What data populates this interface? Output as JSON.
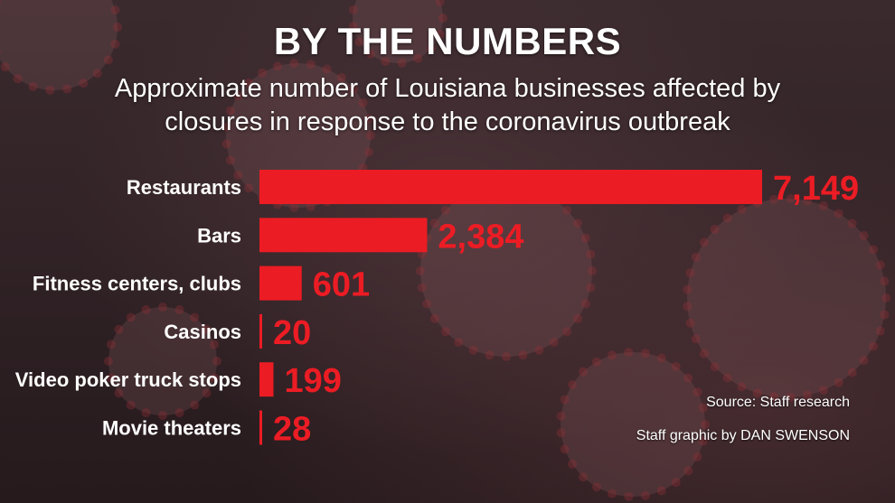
{
  "header": {
    "title": "BY THE NUMBERS",
    "subtitle_line1": "Approximate number of Louisiana businesses affected by",
    "subtitle_line2": "closures in response to the coronavirus outbreak"
  },
  "footer": {
    "source": "Source: Staff research",
    "credit": "Staff graphic by DAN SWENSON"
  },
  "colors": {
    "bar": "#ec1c24",
    "value_text": "#ec1c24",
    "label_text": "#ffffff"
  },
  "chart_data": {
    "type": "bar",
    "orientation": "horizontal",
    "categories": [
      "Restaurants",
      "Bars",
      "Fitness centers, clubs",
      "Casinos",
      "Video poker truck stops",
      "Movie theaters"
    ],
    "values": [
      7149,
      2384,
      601,
      20,
      199,
      28
    ],
    "value_labels": [
      "7,149",
      "2,384",
      "601",
      "20",
      "199",
      "28"
    ],
    "xlim": [
      0,
      7149
    ],
    "grid": false,
    "legend": "none"
  }
}
